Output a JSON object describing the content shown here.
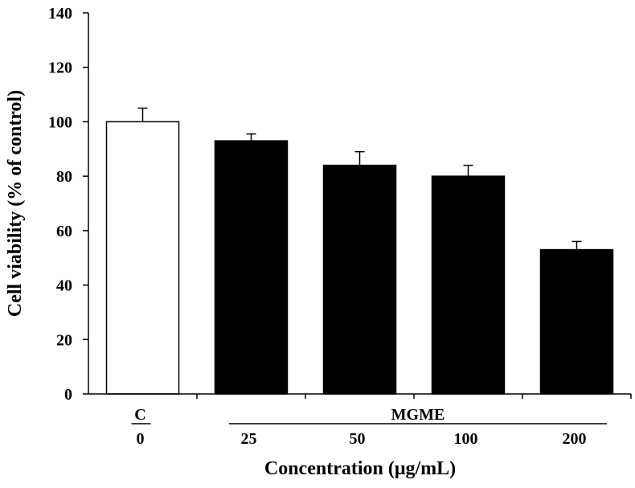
{
  "chart_data": {
    "type": "bar",
    "xlabel": "Concentration (μg/mL)",
    "ylabel": "Cell viability (% of control)",
    "ylim": [
      0,
      140
    ],
    "yticks": [
      0,
      20,
      40,
      60,
      80,
      100,
      120,
      140
    ],
    "grid": false,
    "categories": [
      "0",
      "25",
      "50",
      "100",
      "200"
    ],
    "groups": [
      {
        "label": "C",
        "categories": [
          "0"
        ]
      },
      {
        "label": "MGME",
        "categories": [
          "25",
          "50",
          "100",
          "200"
        ]
      }
    ],
    "values": [
      100,
      93,
      84,
      80,
      53
    ],
    "errors": [
      5,
      2.5,
      5,
      4,
      3
    ],
    "bar_colors": [
      "#ffffff",
      "#000000",
      "#000000",
      "#000000",
      "#000000"
    ]
  }
}
